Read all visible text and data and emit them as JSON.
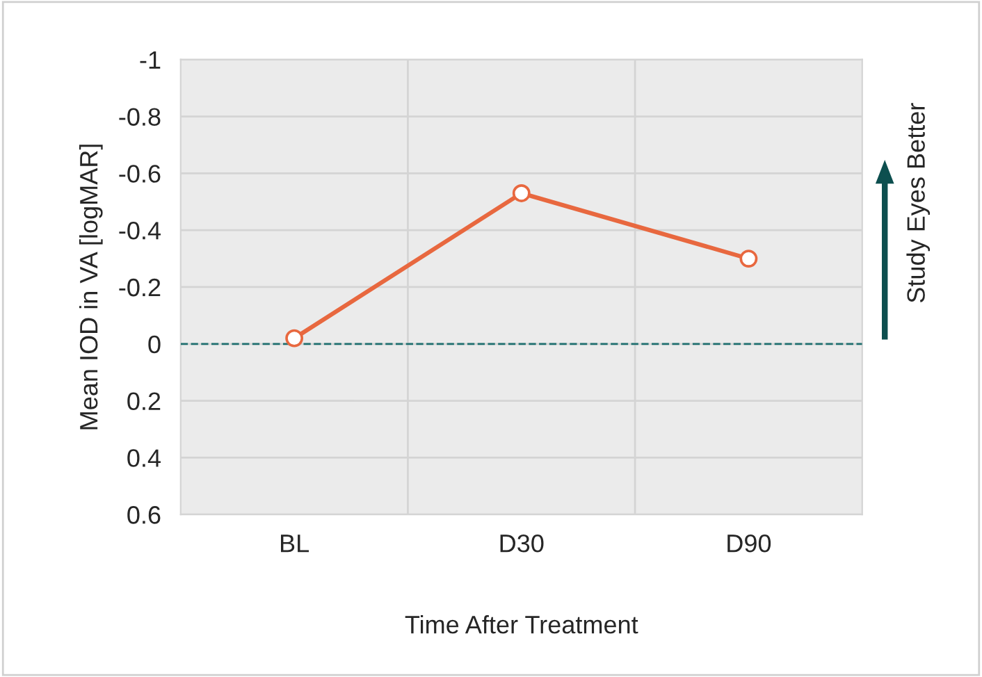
{
  "chart_data": {
    "type": "line",
    "xlabel": "Time After Treatment",
    "ylabel": "Mean IOD in VA [logMAR]",
    "categories": [
      "BL",
      "D30",
      "D90"
    ],
    "series": [
      {
        "color": "#e8683f",
        "values": [
          -0.02,
          -0.53,
          -0.3
        ]
      }
    ],
    "ylim": [
      0.6,
      -1
    ],
    "yticks": [
      -1,
      -0.8,
      -0.6,
      -0.4,
      -0.2,
      0,
      0.2,
      0.4,
      0.6
    ],
    "ref_lines": [
      {
        "axis": "y",
        "value": 0,
        "color": "#1f6f6f",
        "line_style": "dashed"
      }
    ],
    "annotations": [
      "Study Eyes Better"
    ],
    "grid": true,
    "marker": "circle",
    "line_style": "solid"
  }
}
